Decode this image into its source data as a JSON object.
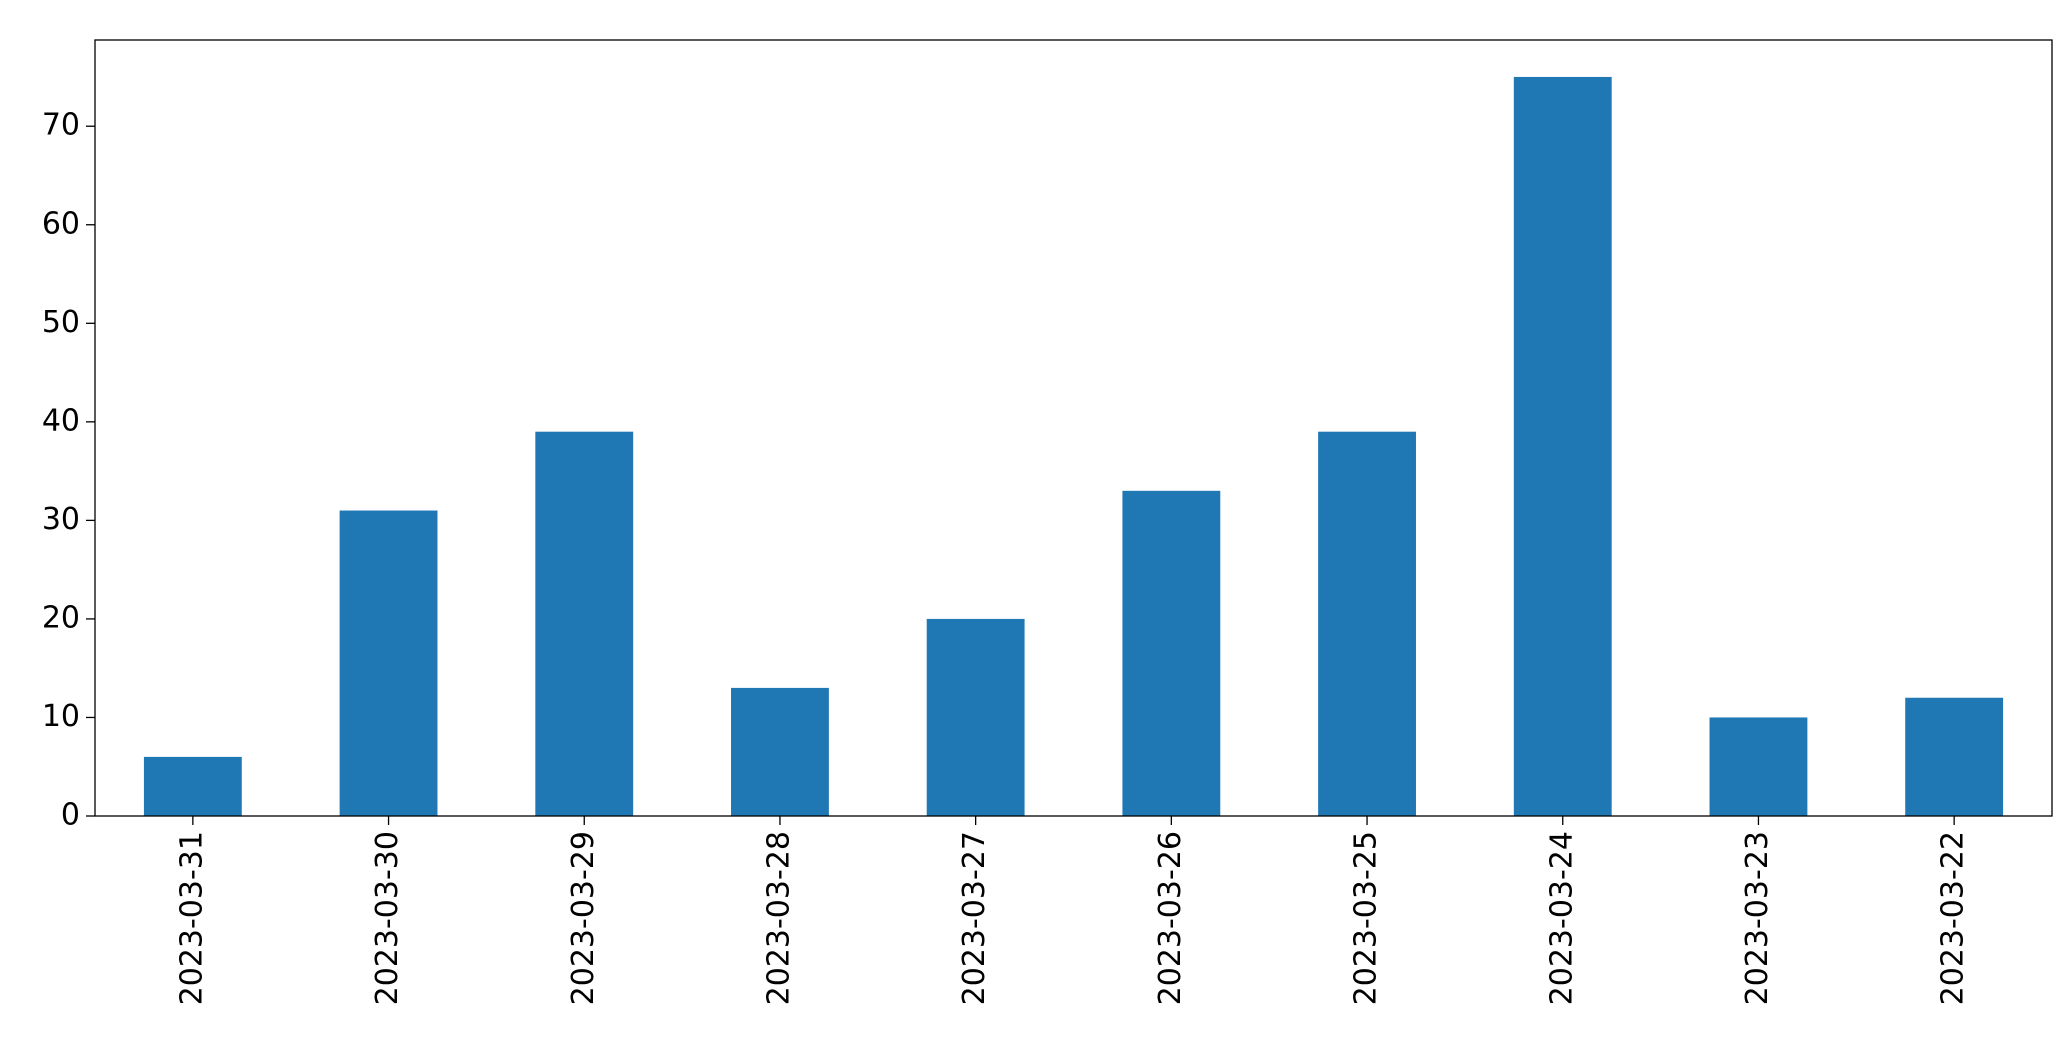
{
  "chart_data": {
    "type": "bar",
    "categories": [
      "2023-03-31",
      "2023-03-30",
      "2023-03-29",
      "2023-03-28",
      "2023-03-27",
      "2023-03-26",
      "2023-03-25",
      "2023-03-24",
      "2023-03-23",
      "2023-03-22"
    ],
    "values": [
      6,
      31,
      39,
      13,
      20,
      33,
      39,
      75,
      10,
      12
    ],
    "color": "#1f77b4",
    "ylim": [
      0,
      78.75
    ],
    "yticks": [
      0,
      10,
      20,
      30,
      40,
      50,
      60,
      70
    ],
    "grid": false
  }
}
